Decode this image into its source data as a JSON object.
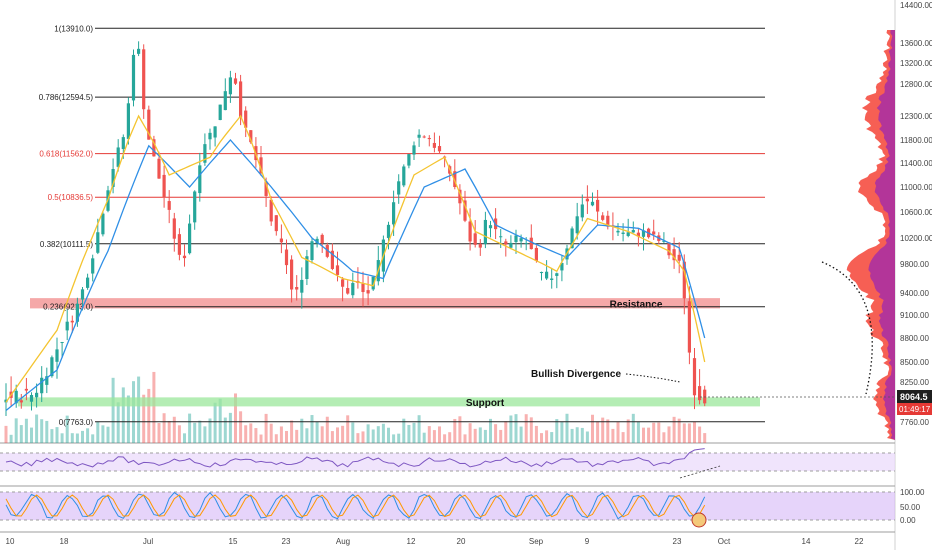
{
  "chart_data": {
    "type": "candlestick",
    "title": "",
    "price_axis": {
      "range": [
        7500,
        14400
      ],
      "ticks": [
        "14400.00",
        "13600.00",
        "13200.00",
        "12800.00",
        "12300.00",
        "11800.00",
        "11400.00",
        "11000.00",
        "10600.00",
        "10200.00",
        "9800.00",
        "9400.00",
        "9100.00",
        "8800.00",
        "8500.00",
        "8250.00",
        "7760.00"
      ],
      "last_price": "8064.5",
      "countdown": "01:49:17"
    },
    "time_axis": {
      "labels": [
        "10",
        "18",
        "Jul",
        "15",
        "23",
        "Aug",
        "12",
        "20",
        "Sep",
        "9",
        "23",
        "Oct",
        "14",
        "22"
      ]
    },
    "fib_levels": [
      {
        "label": "1(13910.0)",
        "value": 13910.0,
        "color": "#222222"
      },
      {
        "label": "0.786(12594.5)",
        "value": 12594.5,
        "color": "#222222"
      },
      {
        "label": "0.618(11562.0)",
        "value": 11562.0,
        "color": "#e53935"
      },
      {
        "label": "0.5(10836.5)",
        "value": 10836.5,
        "color": "#e53935"
      },
      {
        "label": "0.382(10111.5)",
        "value": 10111.5,
        "color": "#222222"
      },
      {
        "label": "0.236(9213.0)",
        "value": 9213.0,
        "color": "#222222"
      },
      {
        "label": "0(7763.0)",
        "value": 7763.0,
        "color": "#222222"
      }
    ],
    "zones": [
      {
        "label": "Resistance",
        "low": 9190,
        "high": 9330,
        "color": "#f28b8b"
      },
      {
        "label": "Support",
        "low": 7950,
        "high": 8060,
        "color": "#9be79b"
      }
    ],
    "annotations": [
      {
        "text": "Bullish Divergence"
      }
    ],
    "price_path": [
      [
        0,
        8050
      ],
      [
        6,
        8100
      ],
      [
        10,
        8600
      ],
      [
        15,
        9300
      ],
      [
        18,
        10100
      ],
      [
        21,
        11200
      ],
      [
        24,
        12000
      ],
      [
        26,
        13910
      ],
      [
        28,
        12000
      ],
      [
        30,
        11300
      ],
      [
        33,
        10400
      ],
      [
        35,
        9700
      ],
      [
        37,
        10700
      ],
      [
        39,
        11700
      ],
      [
        41,
        12000
      ],
      [
        43,
        12600
      ],
      [
        45,
        13100
      ],
      [
        47,
        12100
      ],
      [
        49,
        11600
      ],
      [
        51,
        11000
      ],
      [
        53,
        10300
      ],
      [
        55,
        10000
      ],
      [
        57,
        9250
      ],
      [
        59,
        9800
      ],
      [
        61,
        10300
      ],
      [
        63,
        10100
      ],
      [
        65,
        9650
      ],
      [
        67,
        9400
      ],
      [
        69,
        9550
      ],
      [
        71,
        9350
      ],
      [
        73,
        9600
      ],
      [
        75,
        10300
      ],
      [
        77,
        11000
      ],
      [
        79,
        11400
      ],
      [
        81,
        11900
      ],
      [
        83,
        11900
      ],
      [
        85,
        11650
      ],
      [
        87,
        11350
      ],
      [
        89,
        10900
      ],
      [
        91,
        10250
      ],
      [
        93,
        10000
      ],
      [
        95,
        10550
      ],
      [
        97,
        10200
      ],
      [
        99,
        10050
      ],
      [
        101,
        10200
      ],
      [
        103,
        10100
      ],
      [
        105,
        9650
      ],
      [
        107,
        9600
      ],
      [
        109,
        9750
      ],
      [
        111,
        10200
      ],
      [
        113,
        10700
      ],
      [
        115,
        10800
      ],
      [
        117,
        10500
      ],
      [
        119,
        10400
      ],
      [
        121,
        10300
      ],
      [
        123,
        10250
      ],
      [
        125,
        10300
      ],
      [
        127,
        10200
      ],
      [
        129,
        10150
      ],
      [
        131,
        9900
      ],
      [
        133,
        9750
      ],
      [
        135,
        8250
      ],
      [
        136,
        8100
      ],
      [
        137,
        8064
      ]
    ],
    "ma_fast": [
      [
        0,
        8000
      ],
      [
        10,
        8900
      ],
      [
        20,
        10800
      ],
      [
        26,
        12300
      ],
      [
        32,
        11200
      ],
      [
        40,
        11500
      ],
      [
        46,
        12300
      ],
      [
        52,
        10800
      ],
      [
        58,
        9900
      ],
      [
        66,
        9600
      ],
      [
        72,
        9500
      ],
      [
        80,
        11200
      ],
      [
        86,
        11500
      ],
      [
        92,
        10300
      ],
      [
        100,
        10000
      ],
      [
        108,
        9700
      ],
      [
        114,
        10500
      ],
      [
        122,
        10300
      ],
      [
        130,
        10000
      ],
      [
        133,
        9700
      ],
      [
        137,
        8500
      ]
    ],
    "ma_slow": [
      [
        0,
        7900
      ],
      [
        10,
        8400
      ],
      [
        20,
        10000
      ],
      [
        28,
        11700
      ],
      [
        36,
        11000
      ],
      [
        44,
        11800
      ],
      [
        52,
        11000
      ],
      [
        60,
        10200
      ],
      [
        68,
        9700
      ],
      [
        74,
        9600
      ],
      [
        82,
        11000
      ],
      [
        90,
        11300
      ],
      [
        96,
        10400
      ],
      [
        104,
        10100
      ],
      [
        110,
        9900
      ],
      [
        116,
        10400
      ],
      [
        124,
        10350
      ],
      [
        132,
        10050
      ],
      [
        137,
        8800
      ]
    ],
    "rsi": {
      "range": [
        0,
        100
      ],
      "ticks": []
    },
    "stoch_rsi": {
      "range": [
        0,
        100
      ],
      "ticks": [
        "100.00",
        "50.00",
        "0.00"
      ]
    },
    "colors": {
      "up": "#26a69a",
      "down": "#ef5350",
      "ma_fast": "#f4c430",
      "ma_slow": "#2f8fe6",
      "profile_up": "#9c27b0",
      "profile_down": "#f44336",
      "rsi": "#7e57c2"
    }
  }
}
